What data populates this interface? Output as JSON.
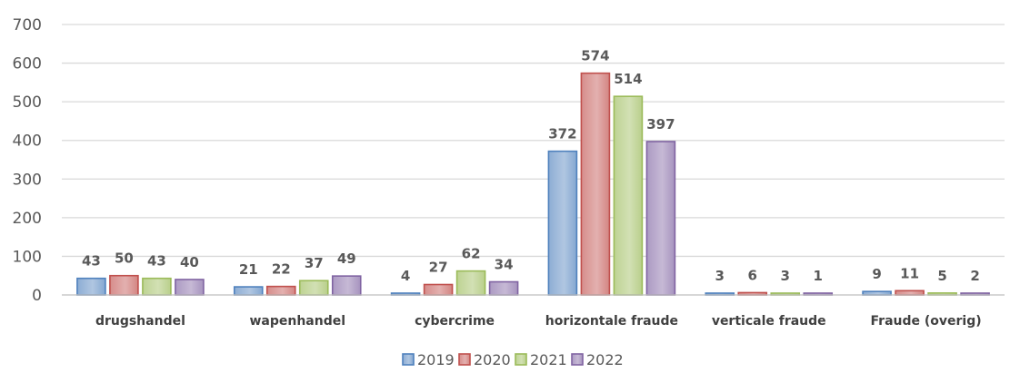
{
  "chart_data": {
    "type": "bar",
    "categories": [
      "drugshandel",
      "wapenhandel",
      "cybercrime",
      "horizontale fraude",
      "verticale fraude",
      "Fraude (overig)"
    ],
    "series": [
      {
        "name": "2019",
        "values": [
          43,
          21,
          4,
          372,
          3,
          9
        ],
        "color": "#4f81bd"
      },
      {
        "name": "2020",
        "values": [
          50,
          22,
          27,
          574,
          6,
          11
        ],
        "color": "#c0504d"
      },
      {
        "name": "2021",
        "values": [
          43,
          37,
          62,
          514,
          3,
          5
        ],
        "color": "#9bbb59"
      },
      {
        "name": "2022",
        "values": [
          40,
          49,
          34,
          397,
          1,
          2
        ],
        "color": "#8064a2"
      }
    ],
    "ylim": [
      0,
      700
    ],
    "yticks": [
      0,
      100,
      200,
      300,
      400,
      500,
      600,
      700
    ],
    "grid": true,
    "legend_position": "bottom",
    "data_labels": true
  }
}
